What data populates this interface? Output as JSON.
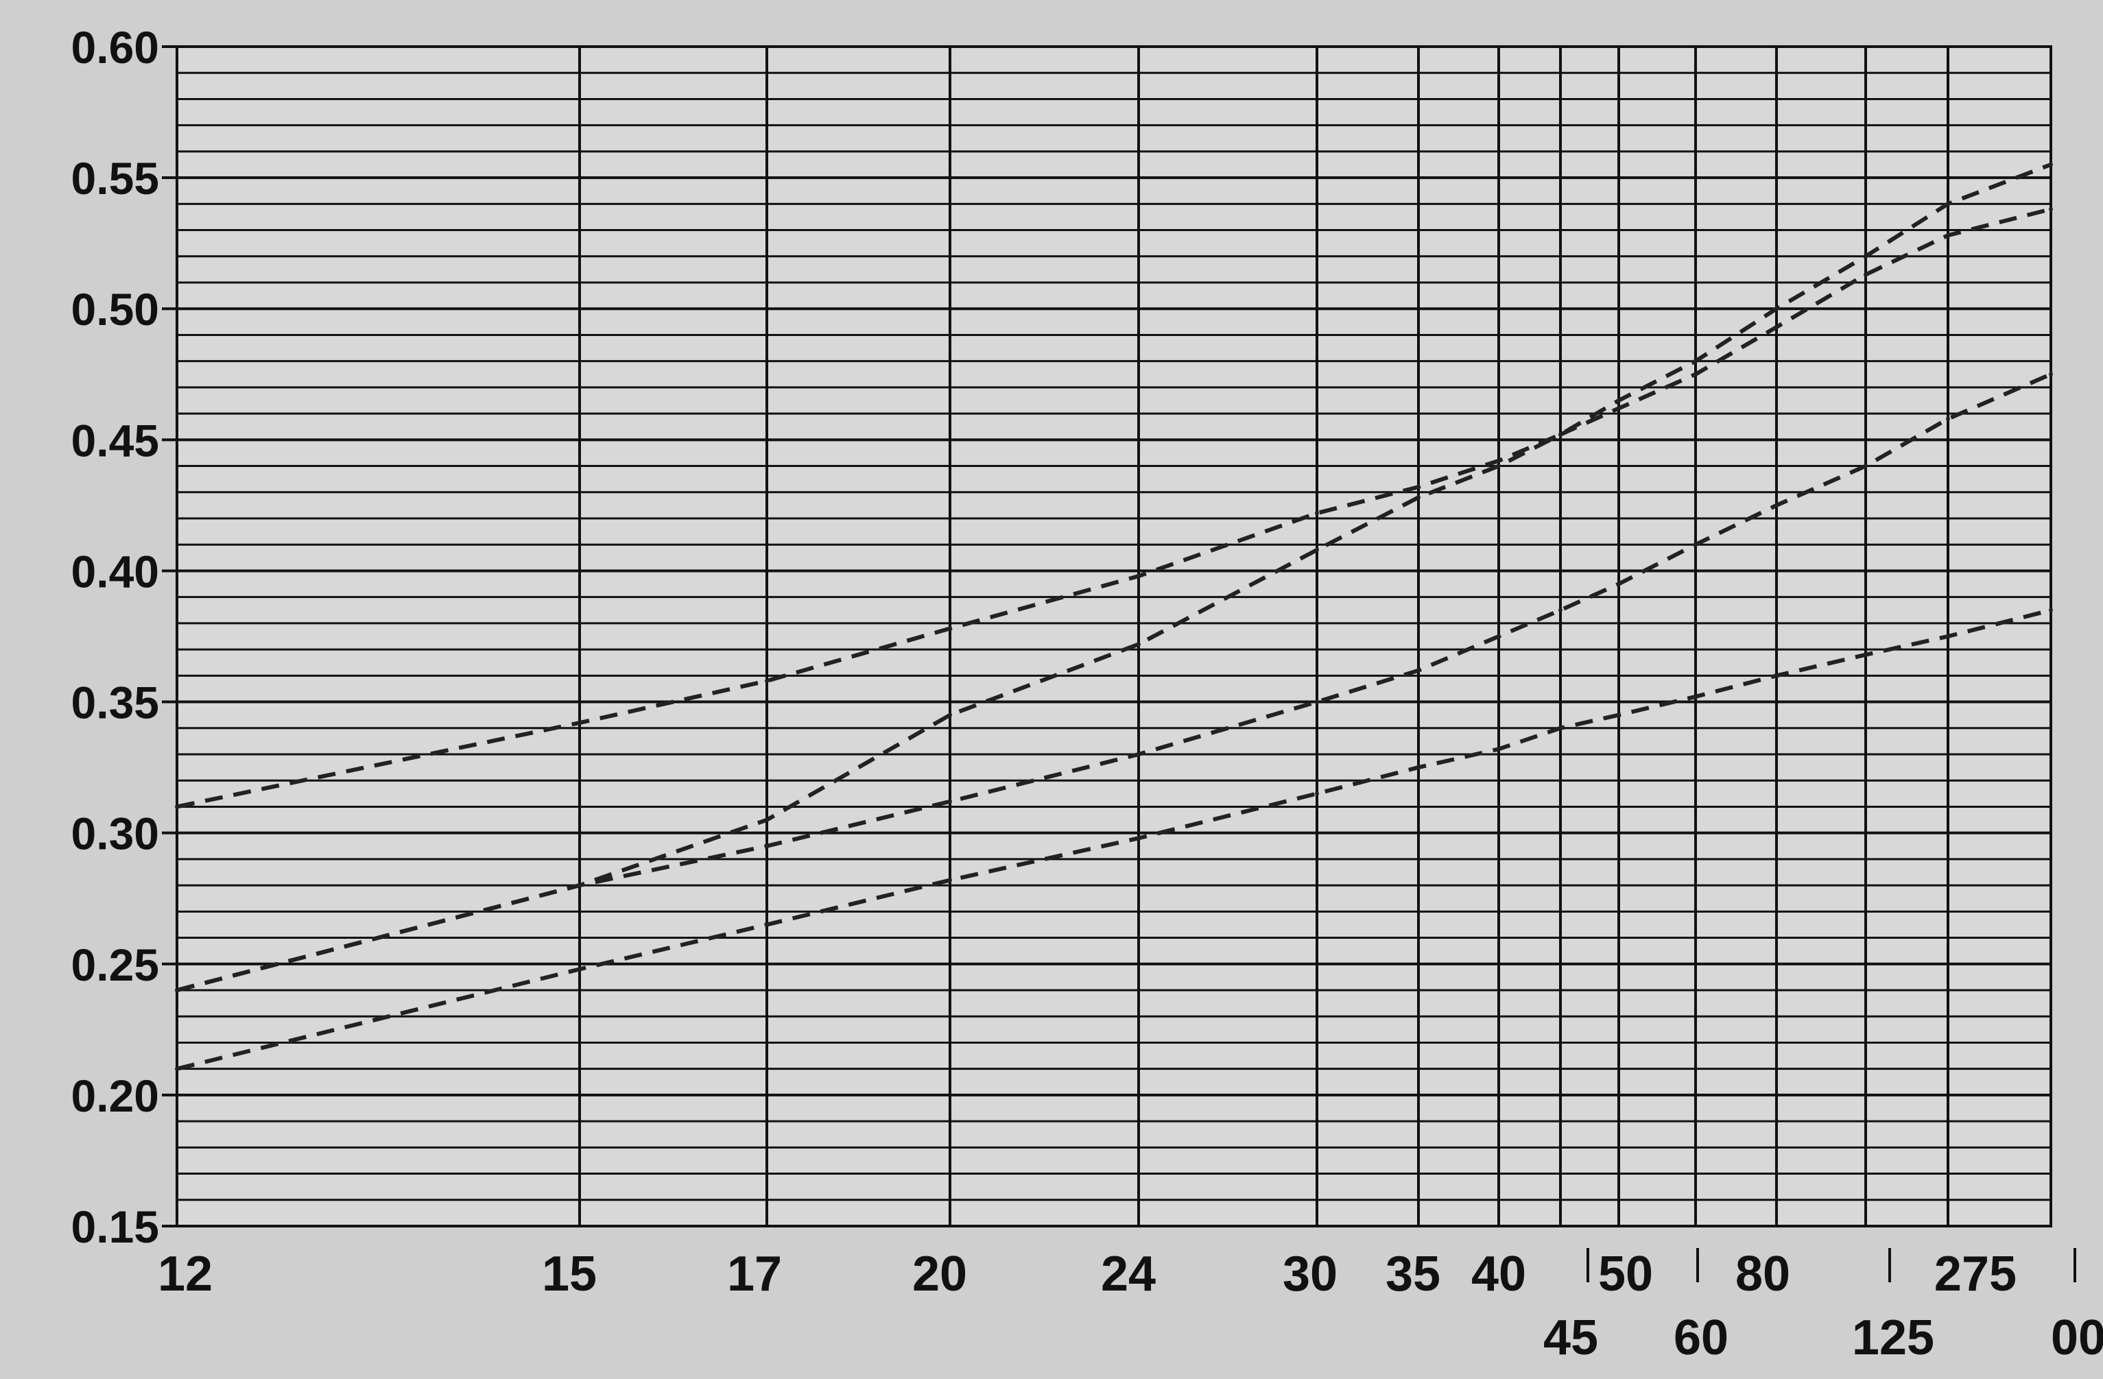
{
  "chart_data": {
    "type": "line",
    "title": "",
    "xlabel": "",
    "ylabel": "",
    "ylim": [
      0.15,
      0.6
    ],
    "y_ticks": [
      "0.60",
      "0.55",
      "0.50",
      "0.45",
      "0.40",
      "0.35",
      "0.30",
      "0.25",
      "0.20",
      "0.15"
    ],
    "x_ticks_row1": [
      "12",
      "15",
      "17",
      "20",
      "24",
      "30",
      "35",
      "40",
      "50",
      "80",
      "275"
    ],
    "x_ticks_row2": [
      "45",
      "60",
      "125",
      "00"
    ],
    "grid": true,
    "x": [
      "12",
      "15",
      "17",
      "20",
      "24",
      "30",
      "35",
      "40",
      "45",
      "50",
      "60",
      "80",
      "125",
      "275",
      "00"
    ],
    "series": [
      {
        "values": [
          0.31,
          0.342,
          0.358,
          0.378,
          0.398,
          0.422,
          0.432,
          0.442,
          0.452,
          0.465,
          0.48,
          0.5,
          0.52,
          0.54,
          0.555
        ]
      },
      {
        "values": [
          0.24,
          0.28,
          0.305,
          0.345,
          0.372,
          0.408,
          0.428,
          0.44,
          0.452,
          0.462,
          0.475,
          0.493,
          0.513,
          0.528,
          0.538
        ]
      },
      {
        "values": [
          0.24,
          0.28,
          0.295,
          0.312,
          0.33,
          0.35,
          0.362,
          0.375,
          0.385,
          0.395,
          0.41,
          0.425,
          0.44,
          0.458,
          0.475
        ]
      },
      {
        "values": [
          0.21,
          0.248,
          0.265,
          0.282,
          0.298,
          0.315,
          0.325,
          0.332,
          0.34,
          0.345,
          0.352,
          0.36,
          0.368,
          0.375,
          0.385
        ]
      }
    ],
    "line_style": "dashed",
    "colors": {
      "grid": "#111111",
      "line": "#222222",
      "background": "#cfcfcf"
    }
  }
}
